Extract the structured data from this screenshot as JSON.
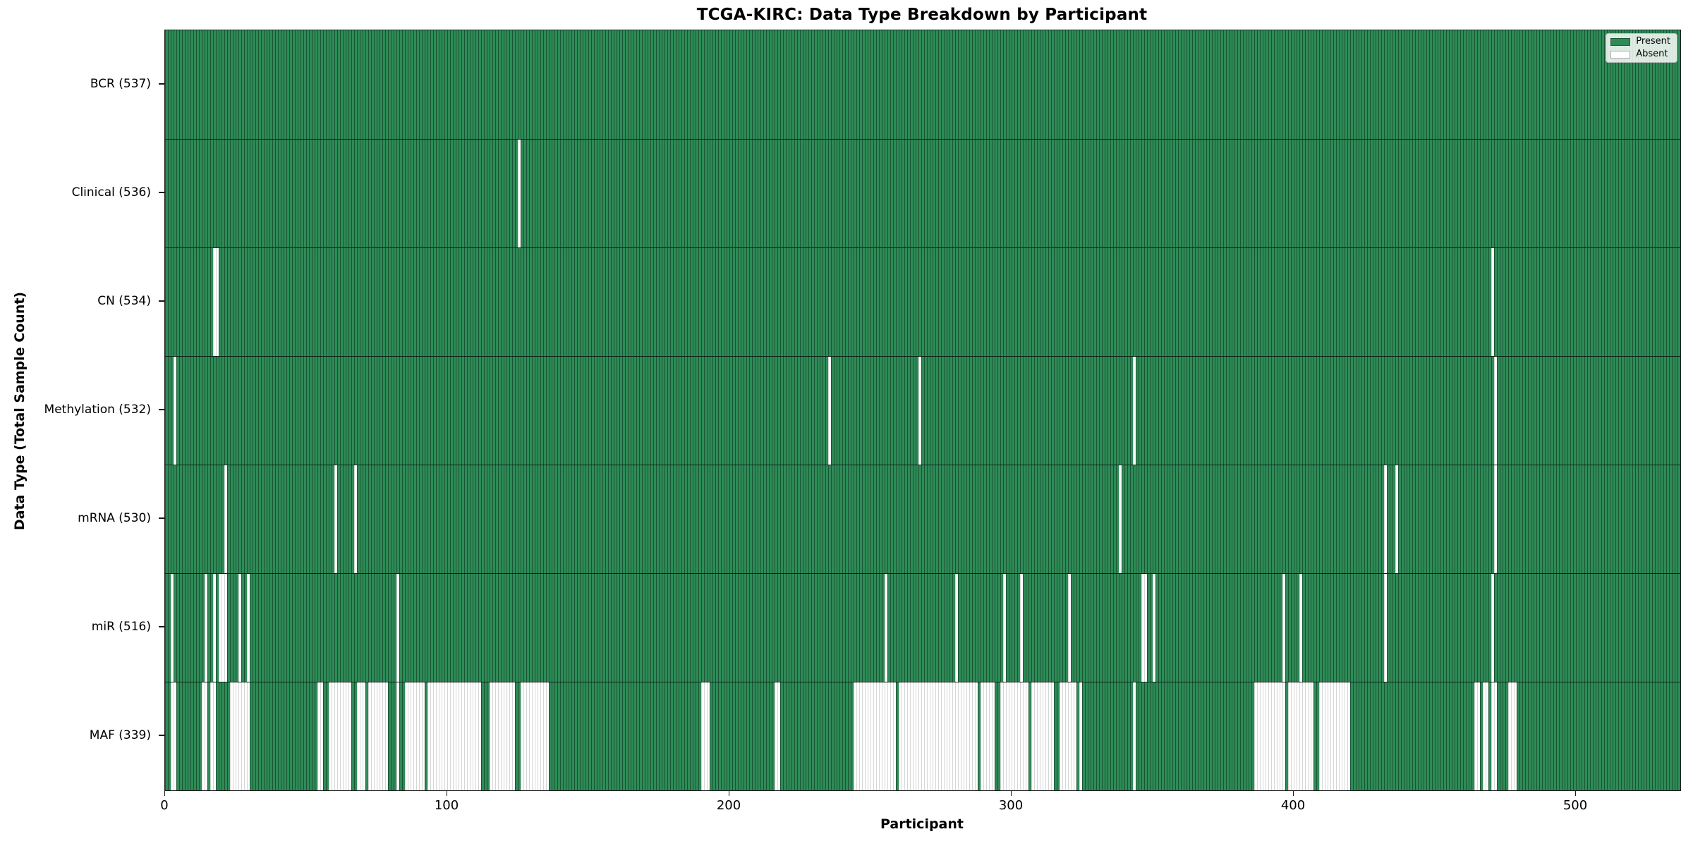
{
  "colors": {
    "present": "#2E8B57",
    "absent": "#FFFFFF",
    "edge": "#1A1A1A",
    "legend_border": "#B8BCB8"
  },
  "legend": {
    "entries": [
      {
        "label": "Present",
        "swatch": "present"
      },
      {
        "label": "Absent",
        "swatch": "absent"
      }
    ]
  },
  "chart_data": {
    "type": "heatmap",
    "title": "TCGA-KIRC: Data Type Breakdown by Participant",
    "xlabel": "Participant",
    "ylabel": "Data Type (Total Sample Count)",
    "legend_position": "upper right",
    "grid": false,
    "n_participants": 537,
    "x_range": [
      0,
      537
    ],
    "x_ticks": [
      0,
      100,
      200,
      300,
      400,
      500
    ],
    "value_encoding": {
      "present": "seagreen bar",
      "absent": "white column"
    },
    "rows": [
      {
        "label": "BCR (537)",
        "name": "BCR",
        "present_count": 537,
        "absent_count": 0,
        "absent_ranges": []
      },
      {
        "label": "Clinical (536)",
        "name": "Clinical",
        "present_count": 536,
        "absent_count": 1,
        "absent_ranges": [
          [
            125,
            125
          ]
        ]
      },
      {
        "label": "CN (534)",
        "name": "CN",
        "present_count": 534,
        "absent_count": 3,
        "absent_ranges": [
          [
            17,
            18
          ],
          [
            470,
            470
          ]
        ]
      },
      {
        "label": "Methylation (532)",
        "name": "Methylation",
        "present_count": 532,
        "absent_count": 5,
        "absent_ranges": [
          [
            3,
            3
          ],
          [
            235,
            235
          ],
          [
            267,
            267
          ],
          [
            343,
            343
          ],
          [
            471,
            471
          ]
        ]
      },
      {
        "label": "mRNA (530)",
        "name": "mRNA",
        "present_count": 530,
        "absent_count": 7,
        "absent_ranges": [
          [
            21,
            21
          ],
          [
            60,
            60
          ],
          [
            67,
            67
          ],
          [
            338,
            338
          ],
          [
            432,
            432
          ],
          [
            436,
            436
          ],
          [
            471,
            471
          ]
        ]
      },
      {
        "label": "miR (516)",
        "name": "miR",
        "present_count": 516,
        "absent_count": 21,
        "absent_ranges": [
          [
            2,
            2
          ],
          [
            14,
            14
          ],
          [
            17,
            17
          ],
          [
            19,
            21
          ],
          [
            26,
            26
          ],
          [
            29,
            29
          ],
          [
            82,
            82
          ],
          [
            255,
            255
          ],
          [
            280,
            280
          ],
          [
            297,
            297
          ],
          [
            303,
            303
          ],
          [
            320,
            320
          ],
          [
            346,
            347
          ],
          [
            350,
            350
          ],
          [
            396,
            396
          ],
          [
            402,
            402
          ],
          [
            432,
            432
          ],
          [
            470,
            470
          ]
        ]
      },
      {
        "label": "MAF (339)",
        "name": "MAF",
        "present_count": 339,
        "absent_count": 198,
        "absent_ranges": [
          [
            2,
            3
          ],
          [
            13,
            14
          ],
          [
            16,
            17
          ],
          [
            23,
            28
          ],
          [
            29,
            29
          ],
          [
            54,
            55
          ],
          [
            58,
            65
          ],
          [
            68,
            70
          ],
          [
            72,
            78
          ],
          [
            82,
            82
          ],
          [
            85,
            91
          ],
          [
            93,
            111
          ],
          [
            115,
            123
          ],
          [
            126,
            135
          ],
          [
            190,
            192
          ],
          [
            216,
            217
          ],
          [
            244,
            258
          ],
          [
            260,
            287
          ],
          [
            289,
            293
          ],
          [
            296,
            305
          ],
          [
            307,
            314
          ],
          [
            317,
            322
          ],
          [
            324,
            324
          ],
          [
            343,
            343
          ],
          [
            386,
            396
          ],
          [
            398,
            406
          ],
          [
            409,
            419
          ],
          [
            464,
            465
          ],
          [
            467,
            468
          ],
          [
            470,
            471
          ],
          [
            476,
            478
          ]
        ]
      }
    ]
  }
}
